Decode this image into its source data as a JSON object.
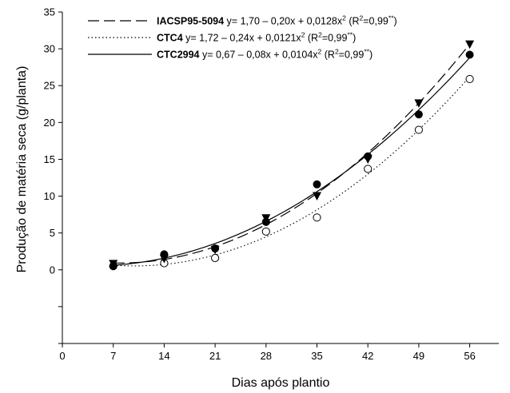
{
  "chart_data": {
    "type": "scatter",
    "xlabel": "Dias após plantio",
    "ylabel": "Produção de matéria seca (g/planta)",
    "xlim": [
      0,
      60
    ],
    "ylim": [
      -10,
      35
    ],
    "x_ticks": [
      0,
      7,
      14,
      21,
      28,
      35,
      42,
      49,
      56
    ],
    "y_ticks": [
      -10,
      -5,
      0,
      5,
      10,
      15,
      20,
      25,
      30,
      35
    ],
    "y_tick_labels": [
      "",
      "",
      "0",
      "5",
      "10",
      "15",
      "20",
      "25",
      "30",
      "35"
    ],
    "grid": false,
    "legend_position": "top-left",
    "series": [
      {
        "name": "IACSP95-5094",
        "marker": "triangle-down",
        "line_style": "dashed",
        "x": [
          7,
          14,
          21,
          28,
          35,
          42,
          49,
          56
        ],
        "values": [
          0.8,
          1.5,
          2.7,
          7.0,
          10.0,
          15.0,
          22.6,
          30.6
        ],
        "equation": "y= 1,70 – 0,20x + 0,0128x",
        "r2": "(R",
        "r2_value": "=0,99",
        "coef": [
          1.7,
          -0.2,
          0.0128
        ]
      },
      {
        "name": "CTC4",
        "marker": "circle-open",
        "line_style": "dotted",
        "x": [
          7,
          14,
          21,
          28,
          35,
          42,
          49,
          56
        ],
        "values": [
          0.5,
          0.9,
          1.6,
          5.2,
          7.1,
          13.7,
          19.0,
          25.9
        ],
        "equation": "y= 1,72 – 0,24x + 0,0121x",
        "r2": "(R",
        "r2_value": "=0,99",
        "coef": [
          1.72,
          -0.24,
          0.0121
        ]
      },
      {
        "name": "CTC2994",
        "marker": "circle-filled",
        "line_style": "solid",
        "x": [
          7,
          14,
          21,
          28,
          35,
          42,
          49,
          56
        ],
        "values": [
          0.5,
          2.1,
          2.9,
          6.5,
          11.6,
          15.4,
          21.1,
          29.2
        ],
        "equation": "y= 0,67 – 0,08x + 0,0104x",
        "r2": "(R",
        "r2_value": "=0,99",
        "coef": [
          0.67,
          -0.08,
          0.0104
        ]
      }
    ],
    "superscript_square": "2",
    "superscript_stars": "**",
    "close_paren": ")"
  }
}
